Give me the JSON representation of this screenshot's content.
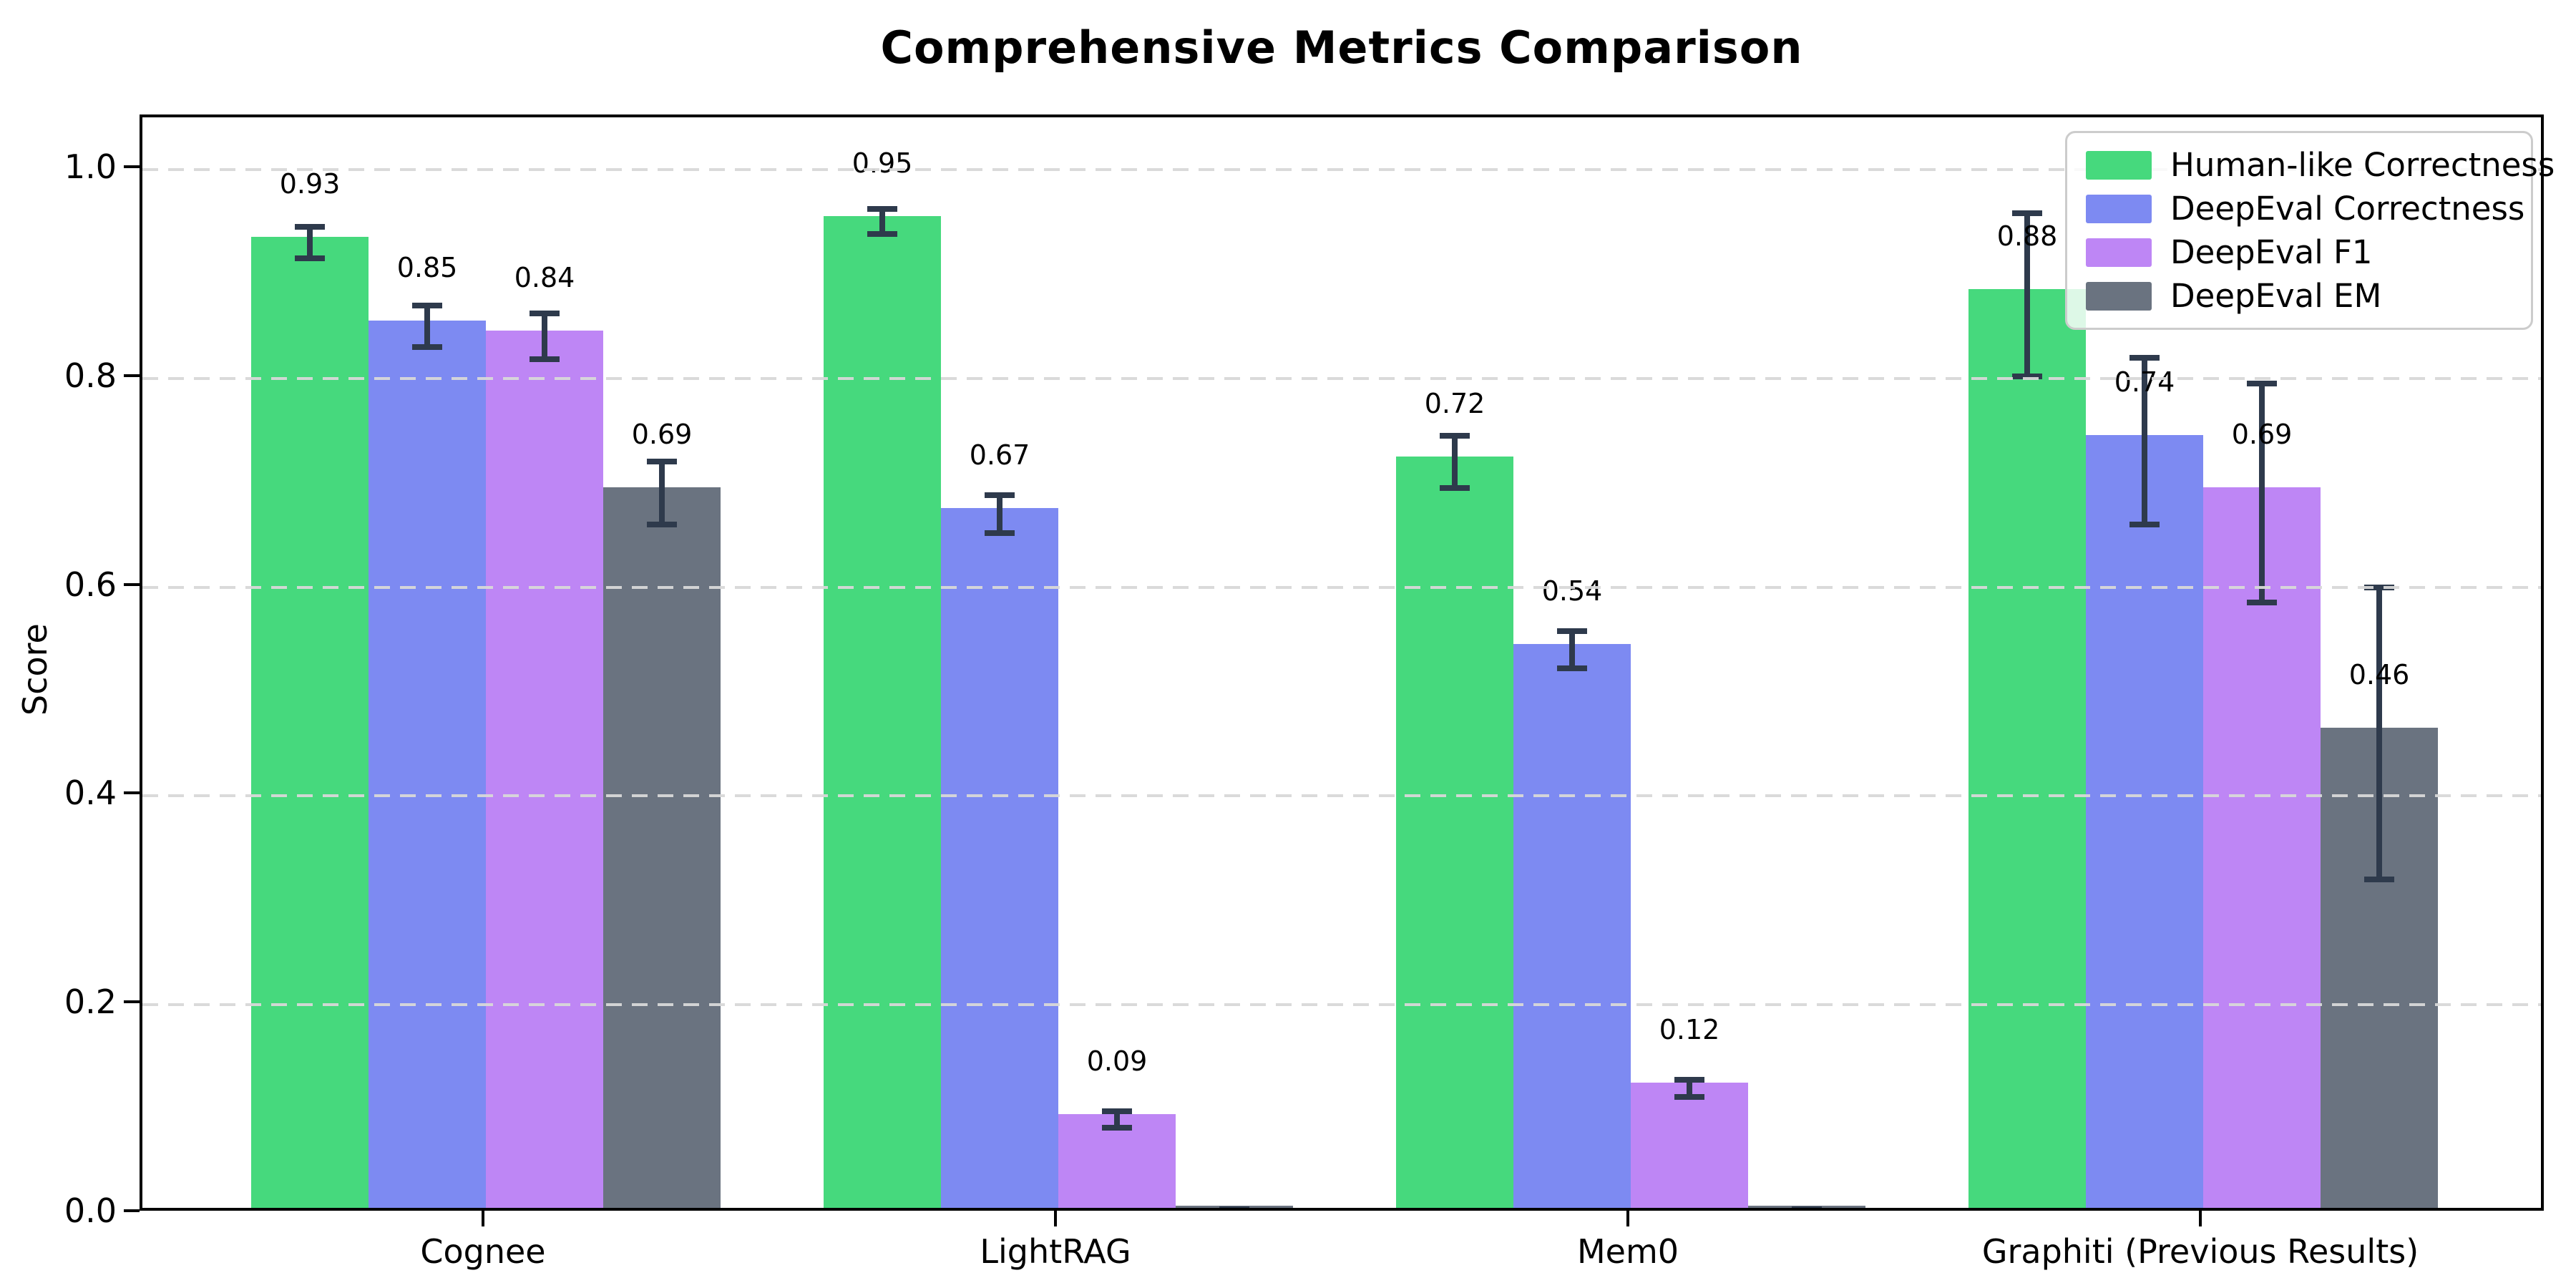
{
  "chart_data": {
    "type": "bar",
    "title": "Comprehensive Metrics Comparison",
    "xlabel": "",
    "ylabel": "Score",
    "categories": [
      "Cognee",
      "LightRAG",
      "Mem0",
      "Graphiti (Previous Results)"
    ],
    "series": [
      {
        "name": "Human-like Correctness",
        "color": "#46d97d",
        "values": [
          0.93,
          0.95,
          0.72,
          0.88
        ],
        "errors": [
          0.015,
          0.012,
          0.025,
          0.078
        ],
        "labels": [
          "0.93",
          "0.95",
          "0.72",
          "0.88"
        ]
      },
      {
        "name": "DeepEval Correctness",
        "color": "#7d8af2",
        "values": [
          0.85,
          0.67,
          0.54,
          0.74
        ],
        "errors": [
          0.02,
          0.018,
          0.018,
          0.08
        ],
        "labels": [
          "0.85",
          "0.67",
          "0.54",
          "0.74"
        ]
      },
      {
        "name": "DeepEval F1",
        "color": "#be86f5",
        "values": [
          0.84,
          0.09,
          0.12,
          0.69
        ],
        "errors": [
          0.022,
          0.008,
          0.008,
          0.105
        ],
        "labels": [
          "0.84",
          "0.09",
          "0.12",
          "0.69"
        ]
      },
      {
        "name": "DeepEval EM",
        "color": "#6a7380",
        "values": [
          0.69,
          0.0,
          0.0,
          0.46
        ],
        "errors": [
          0.03,
          0.004,
          0.004,
          0.14
        ],
        "labels": [
          "0.69",
          "",
          "",
          "0.46"
        ]
      }
    ],
    "yticks": [
      "0.0",
      "0.2",
      "0.4",
      "0.6",
      "0.8",
      "1.0"
    ],
    "ylim": [
      0,
      1.05
    ],
    "grid": "dashed horizontal gridlines at y ticks, drawn over bars",
    "legend_position": "upper right",
    "error_bar_color": "#2e3a4c",
    "gridline_color": "#d8d8d8",
    "axis_color": "#000000",
    "background_color": "#ffffff"
  }
}
